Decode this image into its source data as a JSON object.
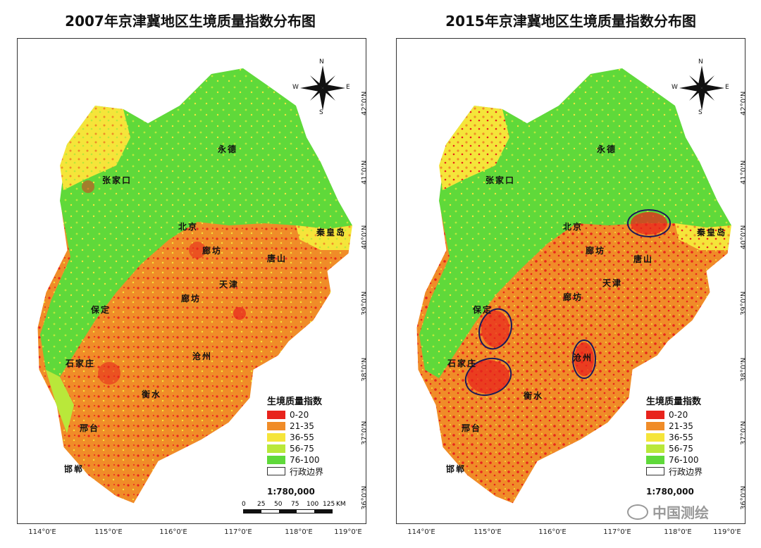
{
  "panels": [
    {
      "title": "2007年京津冀地区生境质量指数分布图",
      "cities": [
        "永德",
        "张家口",
        "北京",
        "秦皇岛",
        "廊坊",
        "唐山",
        "天津",
        "廊坊",
        "保定",
        "石家庄",
        "沧州",
        "衡水",
        "邢台",
        "邯郸"
      ],
      "legend_title": "生境质量指数",
      "legend": [
        "0-20",
        "21-35",
        "36-55",
        "56-75",
        "76-100",
        "行政边界"
      ],
      "scale": "1:780,000",
      "scalebar_ticks": [
        "0",
        "25",
        "50",
        "75",
        "100",
        "125",
        "KM"
      ],
      "lon_ticks": [
        "114°0'E",
        "115°0'E",
        "116°0'E",
        "117°0'E",
        "118°0'E",
        "119°0'E"
      ],
      "lat_ticks": [
        "42°0'N",
        "41°0'N",
        "40°0'N",
        "39°0'N",
        "38°0'N",
        "37°0'N",
        "36°0'N"
      ],
      "compass": [
        "N",
        "S",
        "W",
        "E"
      ]
    },
    {
      "title": "2015年京津冀地区生境质量指数分布图",
      "cities": [
        "永德",
        "张家口",
        "北京",
        "秦皇岛",
        "廊坊",
        "唐山",
        "天津",
        "廊坊",
        "保定",
        "石家庄",
        "沧州",
        "衡水",
        "邢台",
        "邯郸"
      ],
      "legend_title": "生境质量指数",
      "legend": [
        "0-20",
        "21-35",
        "36-55",
        "56-75",
        "76-100",
        "行政边界"
      ],
      "scale": "1:780,000",
      "lon_ticks": [
        "114°0'E",
        "115°0'E",
        "116°0'E",
        "117°0'E",
        "118°0'E",
        "119°0'E"
      ],
      "lat_ticks": [
        "42°0'N",
        "41°0'N",
        "40°0'N",
        "39°0'N",
        "38°0'N",
        "37°0'N",
        "36°0'N"
      ],
      "compass": [
        "N",
        "S",
        "W",
        "E"
      ]
    }
  ],
  "colors": {
    "c0_20": "#e8231c",
    "c21_35": "#f08c28",
    "c36_55": "#f5e53a",
    "c56_75": "#b9e83a",
    "c76_100": "#5fd93a",
    "boundary": "#ffffff"
  },
  "watermark": "中国测绘"
}
